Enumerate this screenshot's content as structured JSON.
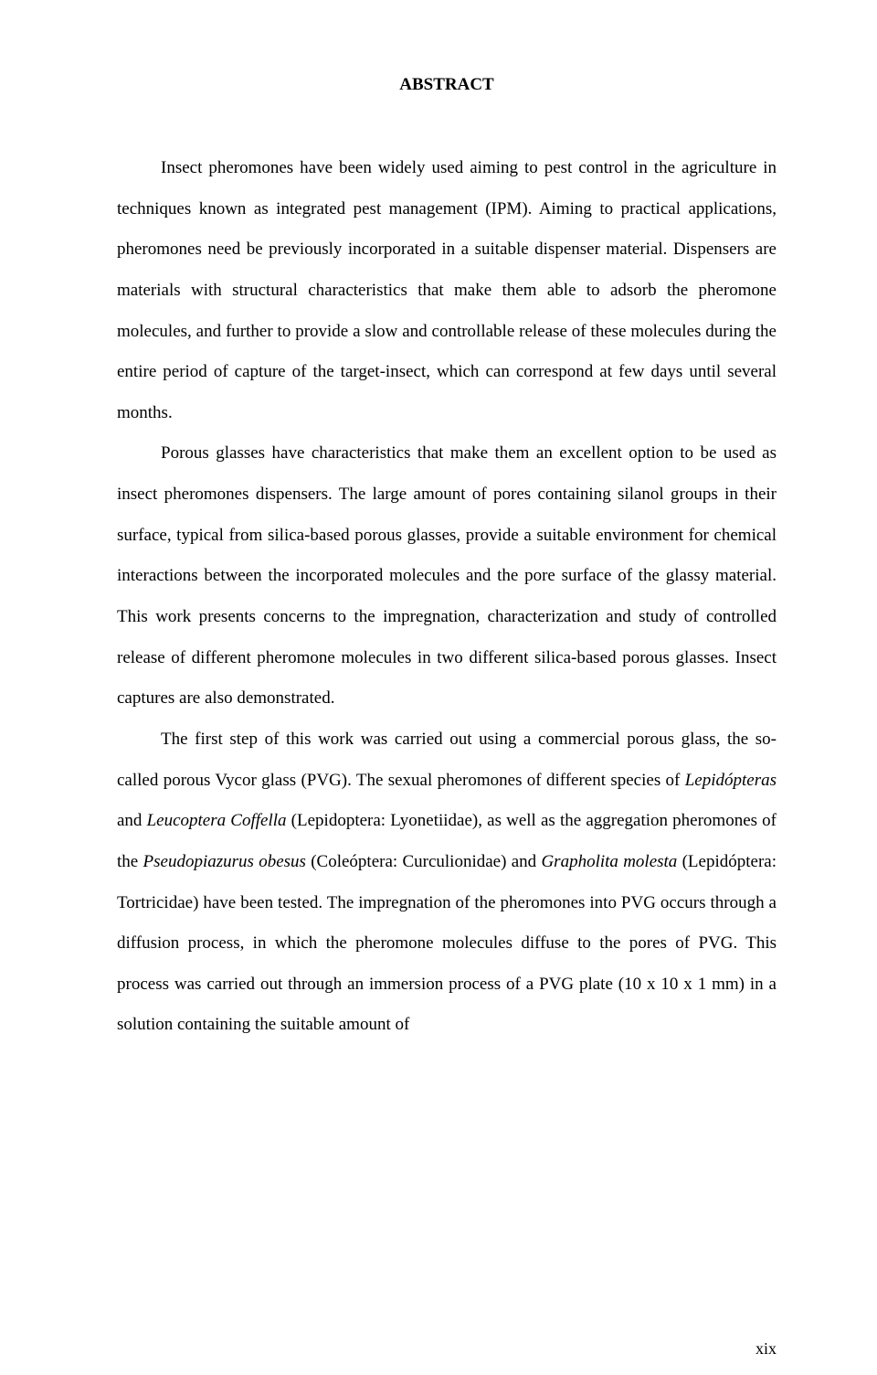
{
  "heading": "ABSTRACT",
  "para1_part1": "Insect pheromones have been widely used aiming to pest control in the agriculture in techniques known as integrated pest management (IPM). Aiming to practical applications, pheromones need be previously incorporated in a suitable dispenser material. Dispensers are materials with structural characteristics that make them able to adsorb the pheromone molecules, and further to provide a slow and controllable release of these molecules during the entire period of capture of the target-insect, which can correspond at few days until several months.",
  "para2": "Porous glasses have characteristics that make them an excellent option to be used as insect pheromones dispensers. The large amount of pores containing silanol groups in their surface, typical from silica-based porous glasses, provide a suitable environment for chemical interactions between the incorporated molecules and the pore surface of the glassy material. This work presents concerns to the impregnation, characterization and study of controlled release of different pheromone molecules in two different silica-based porous glasses. Insect captures are also demonstrated.",
  "para3_seg1": "The first step of this work was carried out using a commercial porous glass, the so-called porous Vycor glass (PVG). The sexual pheromones of different species of ",
  "para3_it1": "Lepidópteras",
  "para3_seg2": " and ",
  "para3_it2": "Leucoptera Coffella",
  "para3_seg3": " (Lepidoptera: Lyonetiidae), as well as the aggregation pheromones of the ",
  "para3_it3": "Pseudopiazurus obesus",
  "para3_seg4": " (Coleóptera: Curculionidae) and ",
  "para3_it4": "Grapholita molesta",
  "para3_seg5": " (Lepidóptera: Tortricidae) have been tested. The impregnation of the pheromones into PVG occurs through a diffusion process, in which the pheromone molecules diffuse to the pores of PVG. This process was carried out through an immersion process of a PVG plate (10 x 10 x 1 mm) in a solution containing the suitable amount of",
  "pageNumber": "xix"
}
